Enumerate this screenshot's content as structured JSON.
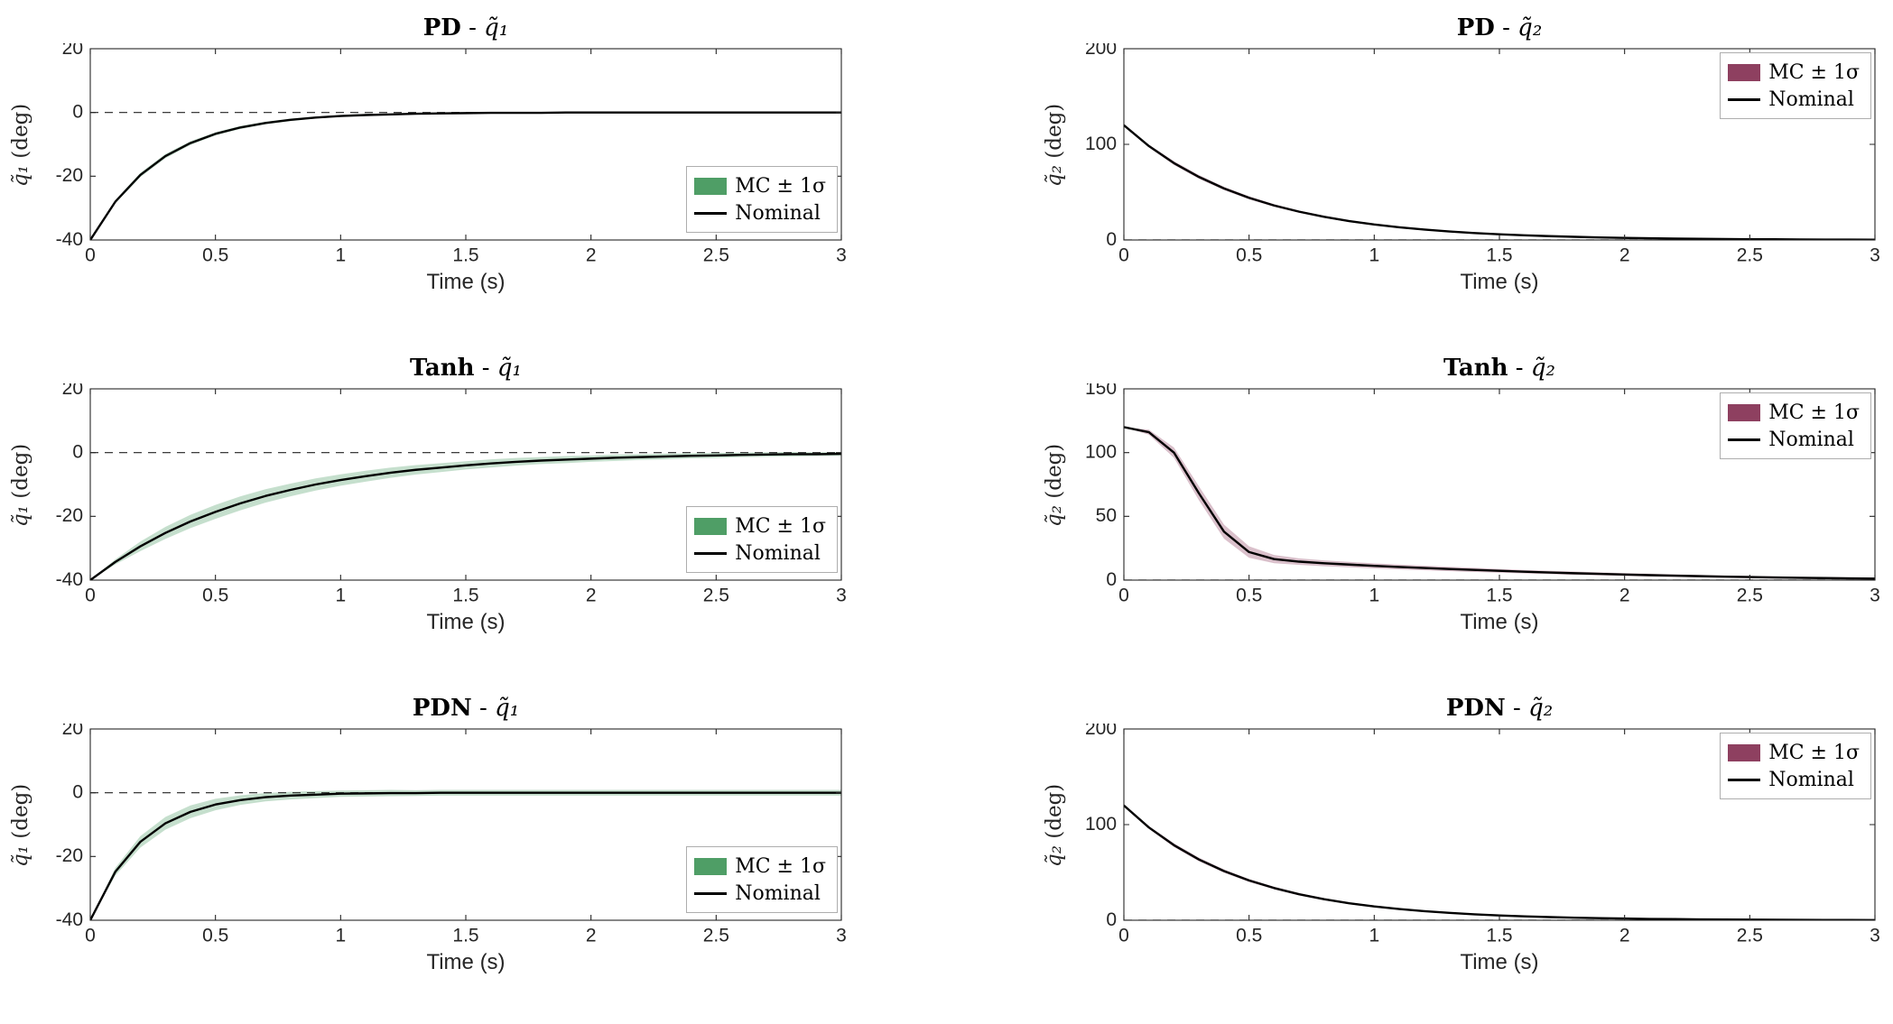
{
  "chart_data": {
    "type": "line",
    "x": [
      0,
      0.1,
      0.2,
      0.3,
      0.4,
      0.5,
      0.6,
      0.7,
      0.8,
      0.9,
      1,
      1.1,
      1.2,
      1.3,
      1.4,
      1.5,
      1.6,
      1.7,
      1.8,
      1.9,
      2,
      2.1,
      2.2,
      2.3,
      2.4,
      2.5,
      2.6,
      2.7,
      2.8,
      2.9,
      3
    ],
    "xlim": [
      0,
      3
    ],
    "xtick_values": [
      0,
      0.5,
      1,
      1.5,
      2,
      2.5,
      3
    ],
    "xtick_labels": [
      "0",
      "0.5",
      "1",
      "1.5",
      "2",
      "2.5",
      "3"
    ],
    "xlabel": "Time (s)",
    "legend_patch": "MC ± 1σ",
    "legend_line": "Nominal",
    "line_color": "#000000",
    "colors": {
      "mc_band_left": "#4f9e66",
      "mc_band_right": "#8e4060",
      "nominal": "#000000"
    },
    "charts": [
      {
        "title_bold": "PD",
        "title_sep": " - ",
        "title_math": "q̃₁",
        "ylabel_math": "q̃₁",
        "ylabel_unit": " (deg)",
        "ylim": [
          -40,
          20
        ],
        "ytick_values": [
          -40,
          -20,
          0,
          20
        ],
        "ytick_labels": [
          "-40",
          "-20",
          "0",
          "20"
        ],
        "band_color": "#4f9e66",
        "legend_position": "bottom-right",
        "values": [
          -40,
          -28,
          -19.6,
          -13.7,
          -9.6,
          -6.7,
          -4.7,
          -3.3,
          -2.3,
          -1.6,
          -1.1,
          -0.8,
          -0.6,
          -0.4,
          -0.3,
          -0.2,
          -0.1,
          -0.1,
          -0.1,
          0,
          0,
          0,
          0,
          0,
          0,
          0,
          0,
          0,
          0,
          0,
          0
        ],
        "band": [
          0,
          0.5,
          0.7,
          0.7,
          0.6,
          0.5,
          0.5,
          0.4,
          0.4,
          0.3,
          0.3,
          0.3,
          0.2,
          0.2,
          0.2,
          0.2,
          0.2,
          0.2,
          0.2,
          0.2,
          0.2,
          0.2,
          0.2,
          0.2,
          0.2,
          0.2,
          0.2,
          0.2,
          0.2,
          0.2,
          0.2
        ]
      },
      {
        "title_bold": "PD",
        "title_sep": " - ",
        "title_math": "q̃₂",
        "ylabel_math": "q̃₂",
        "ylabel_unit": " (deg)",
        "ylim": [
          0,
          200
        ],
        "ytick_values": [
          0,
          100,
          200
        ],
        "ytick_labels": [
          "0",
          "100",
          "200"
        ],
        "band_color": "#8e4060",
        "legend_position": "top-right",
        "values": [
          120,
          98.2,
          80.4,
          65.9,
          53.9,
          44.1,
          36.1,
          29.6,
          24.2,
          19.8,
          16.2,
          13.3,
          10.9,
          8.9,
          7.3,
          6,
          4.9,
          4,
          3.3,
          2.7,
          2.2,
          1.8,
          1.5,
          1.2,
          1,
          0.8,
          0.7,
          0.5,
          0.4,
          0.4,
          0.3
        ],
        "band": [
          0,
          1.5,
          2,
          2,
          1.8,
          1.6,
          1.4,
          1.2,
          1.1,
          1,
          0.9,
          0.8,
          0.7,
          0.7,
          0.6,
          0.6,
          0.5,
          0.5,
          0.5,
          0.4,
          0.4,
          0.4,
          0.4,
          0.3,
          0.3,
          0.3,
          0.3,
          0.3,
          0.3,
          0.3,
          0.3
        ]
      },
      {
        "title_bold": "Tanh",
        "title_sep": " - ",
        "title_math": "q̃₁",
        "ylabel_math": "q̃₁",
        "ylabel_unit": " (deg)",
        "ylim": [
          -40,
          20
        ],
        "ytick_values": [
          -40,
          -20,
          0,
          20
        ],
        "ytick_labels": [
          "-40",
          "-20",
          "0",
          "20"
        ],
        "band_color": "#4f9e66",
        "legend_position": "bottom-right",
        "values": [
          -40,
          -34.3,
          -29.4,
          -25.2,
          -21.6,
          -18.6,
          -15.9,
          -13.6,
          -11.7,
          -10,
          -8.6,
          -7.4,
          -6.3,
          -5.4,
          -4.7,
          -4,
          -3.4,
          -2.9,
          -2.5,
          -2.2,
          -1.9,
          -1.6,
          -1.4,
          -1.2,
          -1,
          -0.9,
          -0.7,
          -0.6,
          -0.5,
          -0.5,
          -0.4
        ],
        "band": [
          0,
          0.8,
          1.5,
          1.9,
          2.1,
          2.2,
          2.2,
          2.1,
          2,
          1.9,
          1.8,
          1.7,
          1.6,
          1.5,
          1.4,
          1.3,
          1.3,
          1.2,
          1.1,
          1.1,
          1,
          1,
          0.9,
          0.9,
          0.8,
          0.8,
          0.7,
          0.7,
          0.7,
          0.6,
          0.6
        ]
      },
      {
        "title_bold": "Tanh",
        "title_sep": " - ",
        "title_math": "q̃₂",
        "ylabel_math": "q̃₂",
        "ylabel_unit": " (deg)",
        "ylim": [
          0,
          150
        ],
        "ytick_values": [
          0,
          50,
          100,
          150
        ],
        "ytick_labels": [
          "0",
          "50",
          "100",
          "150"
        ],
        "band_color": "#8e4060",
        "legend_position": "top-right",
        "values": [
          120,
          116,
          100,
          68,
          38,
          22,
          16.5,
          14.5,
          13.2,
          12.2,
          11.2,
          10.3,
          9.5,
          8.7,
          8,
          7.3,
          6.6,
          6,
          5.4,
          4.9,
          4.4,
          3.9,
          3.5,
          3.1,
          2.7,
          2.4,
          2.1,
          1.8,
          1.6,
          1.4,
          1.2
        ],
        "band": [
          0,
          2,
          4,
          5.5,
          5.5,
          4.5,
          3.2,
          2.6,
          2.3,
          2.1,
          2,
          1.9,
          1.8,
          1.7,
          1.6,
          1.5,
          1.4,
          1.3,
          1.3,
          1.2,
          1.1,
          1.1,
          1,
          1,
          0.9,
          0.9,
          0.9,
          0.8,
          0.8,
          0.8,
          0.8
        ]
      },
      {
        "title_bold": "PDN",
        "title_sep": " - ",
        "title_math": "q̃₁",
        "ylabel_math": "q̃₁",
        "ylabel_unit": " (deg)",
        "ylim": [
          -40,
          20
        ],
        "ytick_values": [
          -40,
          -20,
          0,
          20
        ],
        "ytick_labels": [
          "-40",
          "-20",
          "0",
          "20"
        ],
        "band_color": "#4f9e66",
        "legend_position": "bottom-right",
        "values": [
          -40,
          -24.8,
          -15.4,
          -9.6,
          -6,
          -3.7,
          -2.3,
          -1.4,
          -0.9,
          -0.6,
          -0.3,
          -0.2,
          -0.1,
          -0.1,
          0,
          0,
          0,
          0,
          0,
          0,
          0,
          0,
          0,
          0,
          0,
          0,
          0,
          0,
          0,
          0,
          0
        ],
        "band": [
          0,
          1.2,
          1.8,
          2,
          2,
          1.8,
          1.5,
          1.3,
          1.2,
          1.1,
          1,
          1,
          1,
          0.9,
          0.9,
          0.9,
          0.9,
          0.9,
          0.9,
          0.9,
          0.9,
          0.9,
          0.9,
          0.9,
          0.9,
          0.9,
          0.9,
          0.9,
          0.9,
          0.9,
          0.9
        ]
      },
      {
        "title_bold": "PDN",
        "title_sep": " - ",
        "title_math": "q̃₂",
        "ylabel_math": "q̃₂",
        "ylabel_unit": " (deg)",
        "ylim": [
          0,
          200
        ],
        "ytick_values": [
          0,
          100,
          200
        ],
        "ytick_labels": [
          "0",
          "100",
          "200"
        ],
        "band_color": "#8e4060",
        "legend_position": "top-right",
        "values": [
          120,
          97,
          78.5,
          63.5,
          51.4,
          41.6,
          33.7,
          27.2,
          22,
          17.8,
          14.4,
          11.7,
          9.5,
          7.7,
          6.2,
          5,
          4.1,
          3.3,
          2.7,
          2.2,
          1.8,
          1.4,
          1.2,
          0.9,
          0.8,
          0.6,
          0.5,
          0.4,
          0.3,
          0.3,
          0.2
        ],
        "band": [
          0,
          1.5,
          2,
          2,
          1.8,
          1.6,
          1.4,
          1.2,
          1.1,
          1,
          0.9,
          0.8,
          0.7,
          0.7,
          0.6,
          0.6,
          0.5,
          0.5,
          0.5,
          0.4,
          0.4,
          0.4,
          0.4,
          0.3,
          0.3,
          0.3,
          0.3,
          0.3,
          0.3,
          0.3,
          0.3
        ]
      }
    ]
  }
}
